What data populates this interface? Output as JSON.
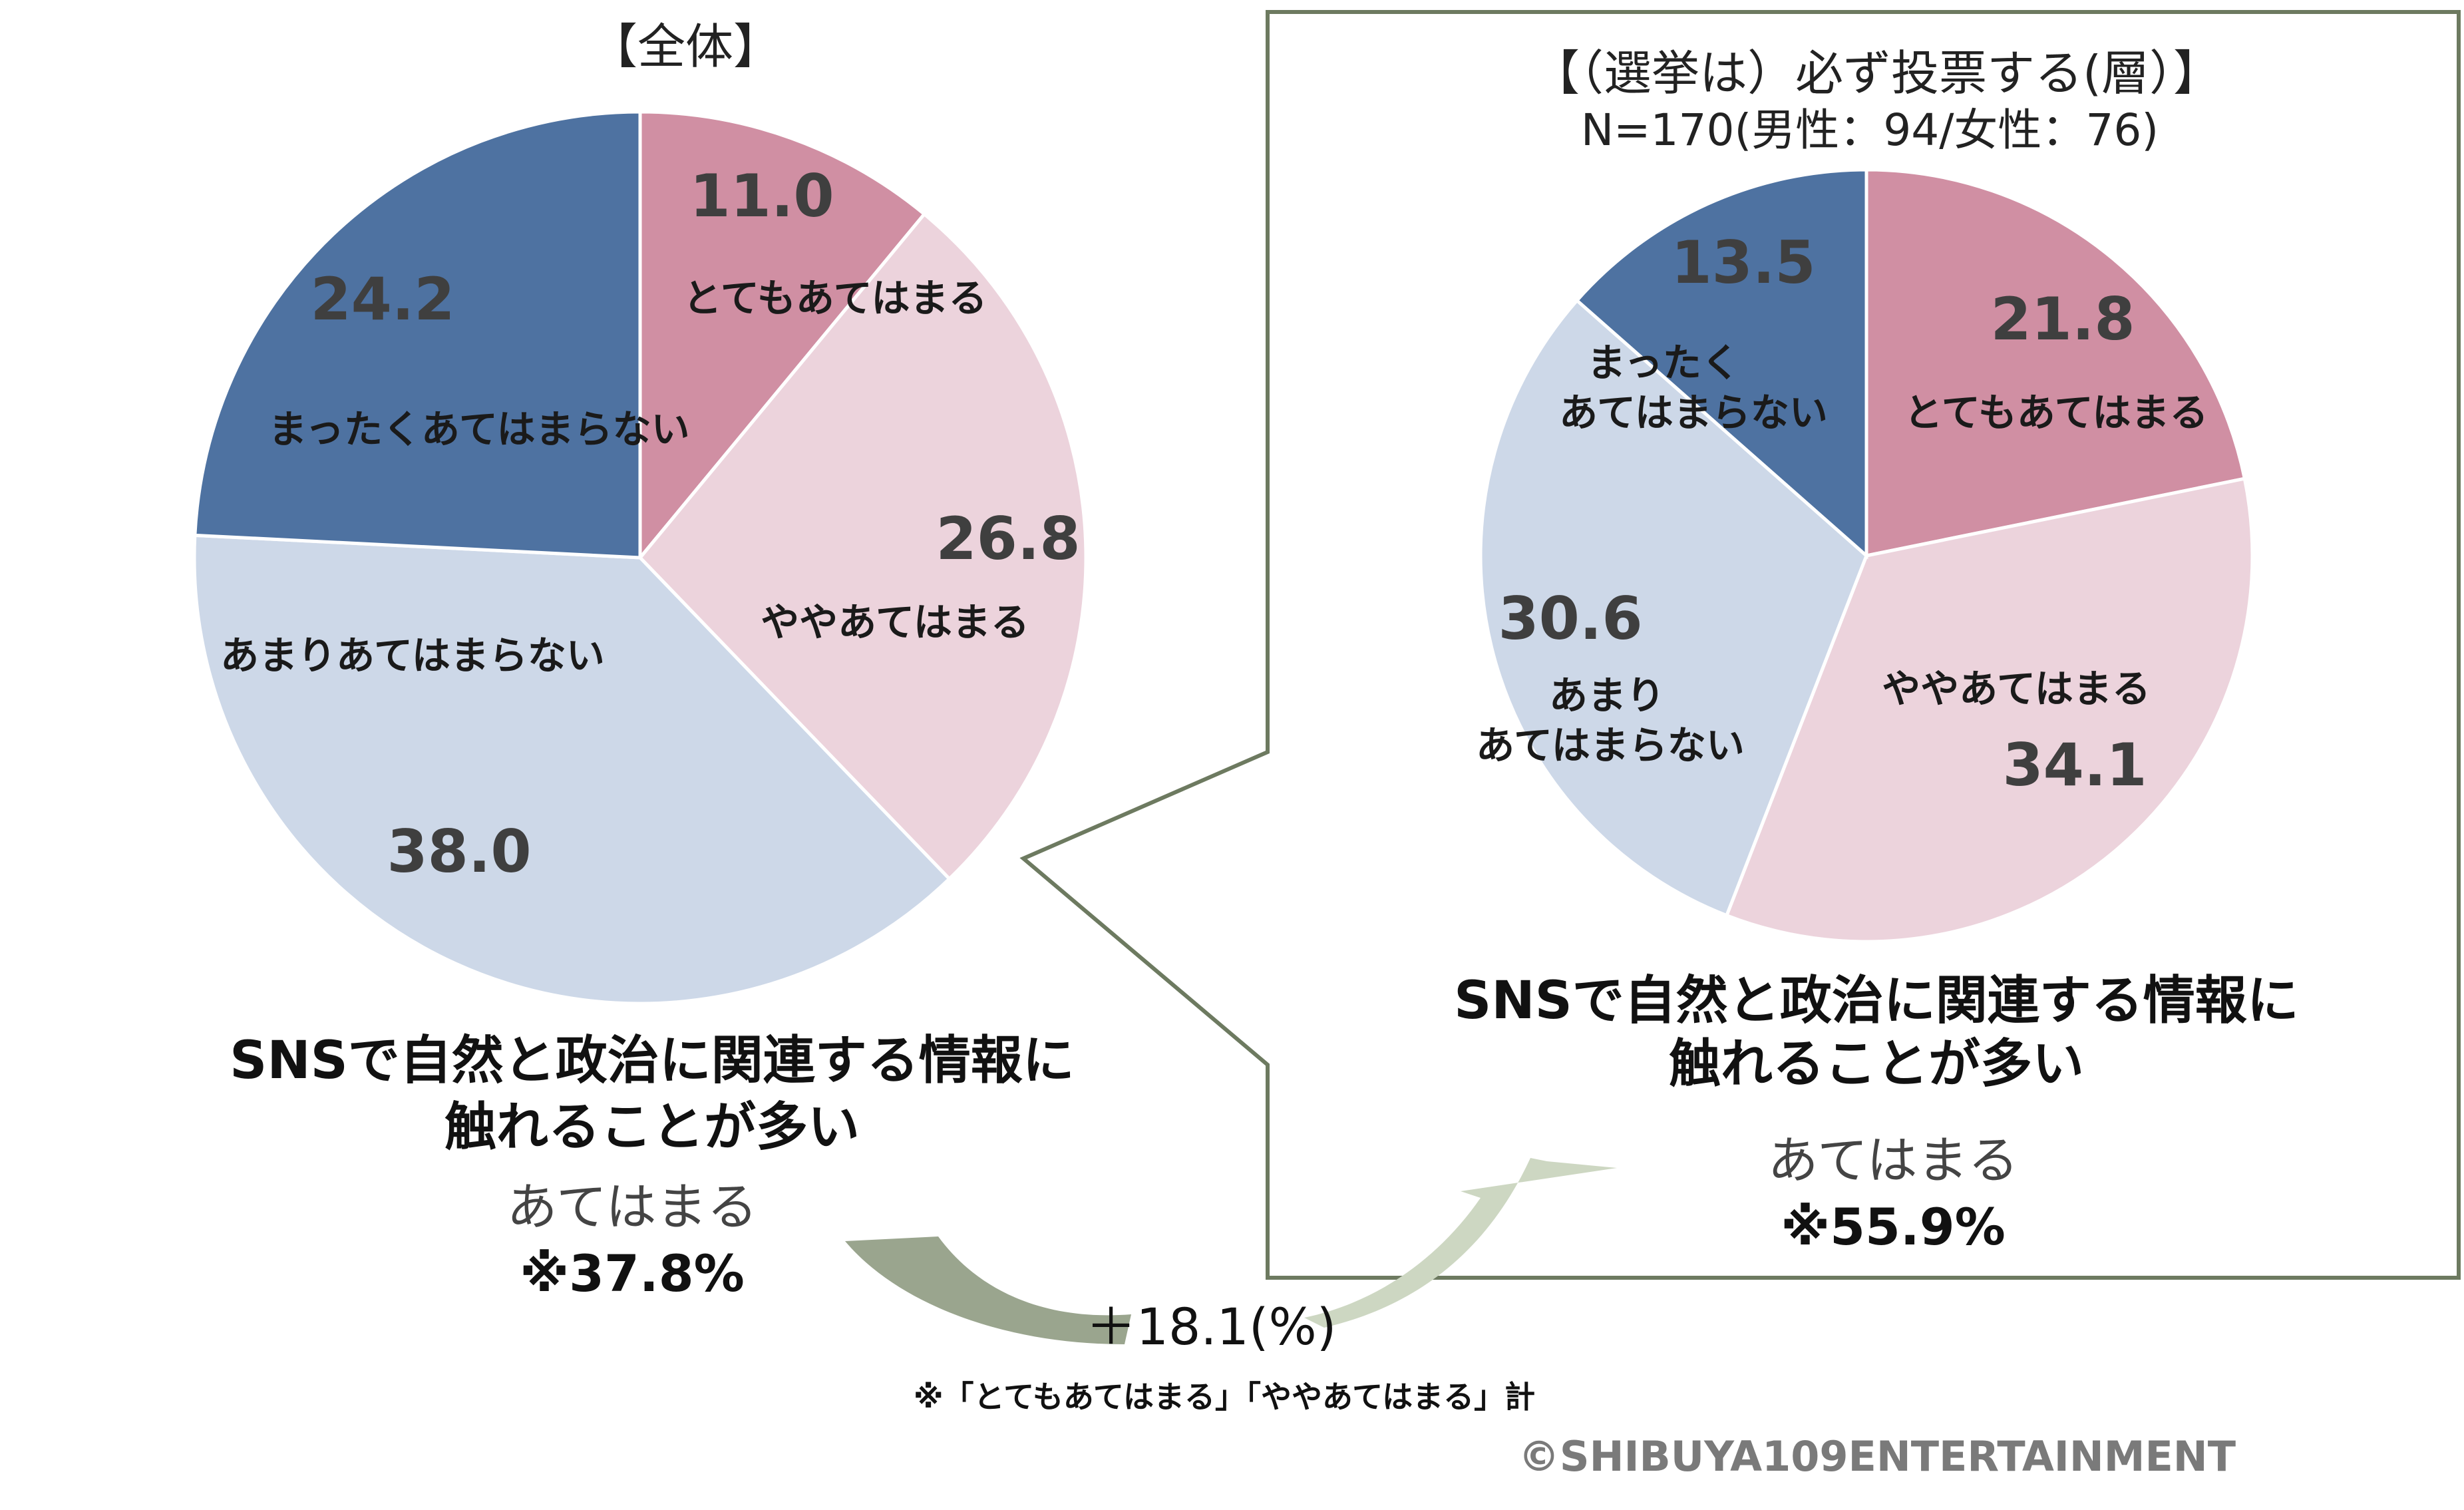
{
  "charts": {
    "left": {
      "title": "【全体】",
      "caption_line1": "SNSで自然と政治に関連する情報に",
      "caption_line2": "触れることが多い",
      "sum_label": "あてはまる",
      "sum_value": "※37.8%"
    },
    "right": {
      "title": "【（選挙は）必ず投票する(層）】",
      "subtitle": "N=170(男性：94/女性：76)",
      "caption_line1": "SNSで自然と政治に関連する情報に",
      "caption_line2": "触れることが多い",
      "sum_label": "あてはまる",
      "sum_value": "※55.9%"
    }
  },
  "diff_label": "＋18.1(%)",
  "footnote": "※「とてもあてはまる」「ややあてはまる」計",
  "copyright": "©SHIBUYA109ENTERTAINMENT",
  "colors": {
    "very": "#d08fa3",
    "somewhat": "#ecd3dc",
    "not_much": "#cdd8e8",
    "not_at_all": "#4e72a1",
    "frame": "#6d7a60",
    "arrow_left": "#9aa58e",
    "arrow_right": "#cdd7c2"
  },
  "chart_data": [
    {
      "type": "pie",
      "title": "【全体】",
      "categories": [
        "とてもあてはまる",
        "ややあてはまる",
        "あまりあてはまらない",
        "まったくあてはまらない"
      ],
      "values": [
        11.0,
        26.8,
        38.0,
        24.2
      ],
      "value_labels": [
        "11.0",
        "26.8",
        "38.0",
        "24.2"
      ],
      "category_labels": [
        [
          "とてもあてはまる"
        ],
        [
          "ややあてはまる"
        ],
        [
          "あまりあてはまらない"
        ],
        [
          "まったくあてはまらない"
        ]
      ]
    },
    {
      "type": "pie",
      "title": "【（選挙は）必ず投票する(層）】",
      "categories": [
        "とてもあてはまる",
        "ややあてはまる",
        "あまりあてはまらない",
        "まったくあてはまらない"
      ],
      "values": [
        21.8,
        34.1,
        30.6,
        13.5
      ],
      "value_labels": [
        "21.8",
        "34.1",
        "30.6",
        "13.5"
      ],
      "category_labels": [
        [
          "とてもあてはまる"
        ],
        [
          "ややあてはまる"
        ],
        [
          "あまり",
          "あてはまらない"
        ],
        [
          "まったく",
          "あてはまらない"
        ]
      ]
    }
  ]
}
